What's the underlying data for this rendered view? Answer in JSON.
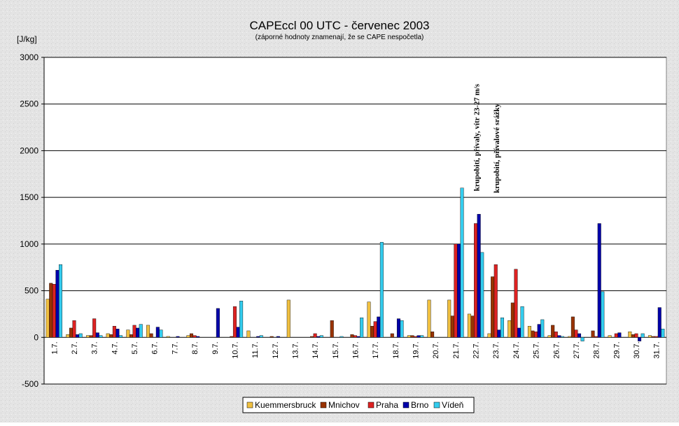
{
  "chart_data": {
    "type": "bar",
    "title": "CAPEccl 00 UTC - červenec 2003",
    "subtitle": "(záporné hodnoty znamenají, že se CAPE nespočetla)",
    "y_label": "[J/kg]",
    "categories": [
      "1.7.",
      "2.7.",
      "3.7.",
      "4.7.",
      "5.7.",
      "6.7.",
      "7.7.",
      "8.7.",
      "9.7.",
      "10.7.",
      "11.7.",
      "12.7.",
      "13.7.",
      "14.7.",
      "15.7.",
      "16.7.",
      "17.7.",
      "18.7.",
      "19.7.",
      "20.7.",
      "21.7.",
      "22.7.",
      "23.7.",
      "24.7.",
      "25.7.",
      "26.7.",
      "27.7.",
      "28.7.",
      "29.7.",
      "30.7.",
      "31.7."
    ],
    "series": [
      {
        "name": "Kuemmersbruck",
        "color": "#f0c040",
        "values": [
          410,
          30,
          20,
          40,
          80,
          130,
          10,
          20,
          0,
          0,
          70,
          0,
          400,
          0,
          0,
          0,
          380,
          0,
          20,
          400,
          400,
          250,
          40,
          180,
          120,
          20,
          10,
          0,
          20,
          60,
          20
        ]
      },
      {
        "name": "Mnichov",
        "color": "#993300",
        "values": [
          580,
          100,
          20,
          30,
          30,
          40,
          0,
          40,
          0,
          10,
          0,
          10,
          0,
          10,
          180,
          30,
          120,
          40,
          20,
          60,
          230,
          230,
          650,
          370,
          70,
          130,
          220,
          70,
          0,
          30,
          10
        ]
      },
      {
        "name": "Praha",
        "color": "#dd2222",
        "values": [
          570,
          180,
          200,
          120,
          130,
          0,
          0,
          20,
          0,
          330,
          0,
          0,
          0,
          40,
          0,
          20,
          170,
          0,
          10,
          0,
          1000,
          1220,
          780,
          730,
          60,
          60,
          80,
          10,
          40,
          40,
          10
        ]
      },
      {
        "name": "Brno",
        "color": "#0000aa",
        "values": [
          720,
          30,
          50,
          90,
          100,
          110,
          10,
          10,
          310,
          110,
          10,
          10,
          0,
          10,
          0,
          10,
          220,
          200,
          20,
          0,
          1000,
          1320,
          80,
          100,
          140,
          20,
          40,
          1220,
          50,
          -40,
          320
        ]
      },
      {
        "name": "Vídeň",
        "color": "#33ccee",
        "values": [
          780,
          40,
          20,
          20,
          140,
          80,
          0,
          0,
          0,
          390,
          20,
          0,
          0,
          20,
          10,
          210,
          1020,
          180,
          20,
          0,
          1600,
          910,
          210,
          330,
          190,
          10,
          -40,
          490,
          0,
          40,
          90
        ]
      }
    ],
    "annotations": [
      "krupobití, přívaly, vítr 23-27 m/s",
      "krupobití, přívalové srážky"
    ],
    "ylim": [
      -500,
      3000
    ],
    "yticks": [
      -500,
      0,
      500,
      1000,
      1500,
      2000,
      2500,
      3000
    ],
    "grid": true,
    "legend": "bottom"
  }
}
